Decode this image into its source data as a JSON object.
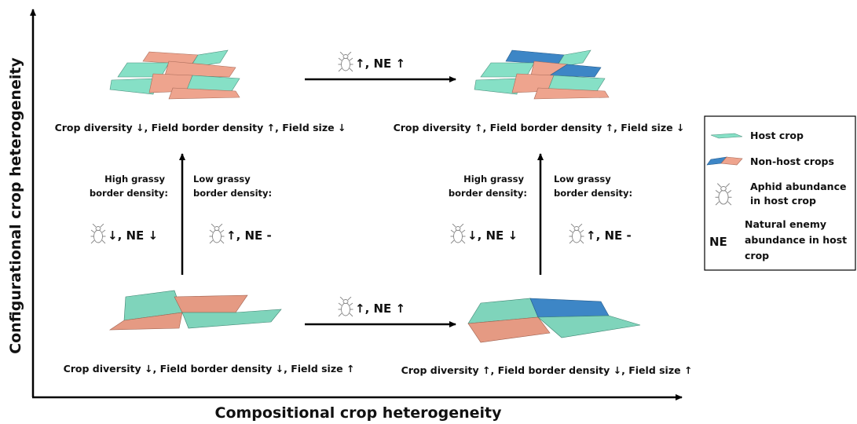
{
  "y_axis_label": "Configurational crop heterogeneity",
  "x_axis_label": "Compositional crop heterogeneity",
  "quadrants": {
    "top_left": {
      "caption": "Crop diversity ↓, Field border density ↑, Field size ↓"
    },
    "top_right": {
      "caption": "Crop diversity ↑, Field border density ↑, Field size ↓"
    },
    "bottom_left": {
      "caption": "Crop diversity ↓, Field border density ↓, Field size ↑"
    },
    "bottom_right": {
      "caption": "Crop diversity ↑, Field border density ↓, Field size ↑"
    }
  },
  "transitions": {
    "top": {
      "effect": "↑, NE ↑"
    },
    "bottom": {
      "effect": "↑, NE ↑"
    },
    "left": {
      "high": {
        "lines": [
          "High grassy",
          "border density:"
        ],
        "effect": "↓, NE ↓"
      },
      "low": {
        "lines": [
          "Low grassy",
          "border density:"
        ],
        "effect": "↑, NE -"
      }
    },
    "right": {
      "high": {
        "lines": [
          "High grassy",
          "border density:"
        ],
        "effect": "↓, NE ↓"
      },
      "low": {
        "lines": [
          "Low grassy",
          "border density:"
        ],
        "effect": "↑, NE -"
      }
    }
  },
  "legend": {
    "host_crop": "Host crop",
    "non_host_crops": "Non-host crops",
    "aphid": {
      "lines": [
        "Aphid abundance",
        "in host crop"
      ]
    },
    "natural_enemy": {
      "symbol": "NE",
      "lines": [
        "Natural enemy",
        "abundance in host",
        "crop"
      ]
    }
  }
}
